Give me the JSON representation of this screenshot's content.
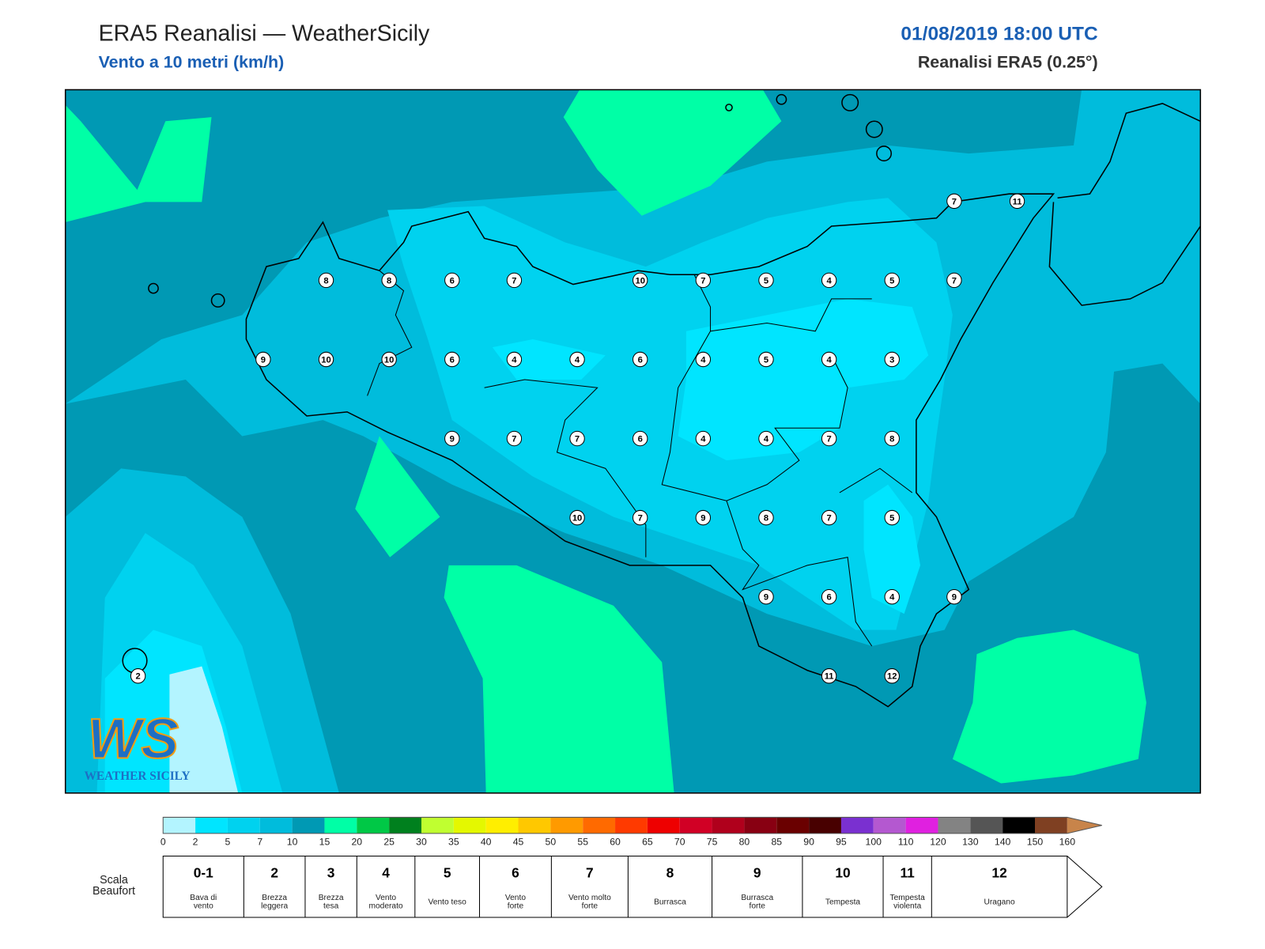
{
  "header": {
    "title": "ERA5 Reanalisi — WeatherSicily",
    "subtitle": "Vento a 10 metri (km/h)",
    "date": "01/08/2019 18:00 UTC",
    "source": "Reanalisi ERA5 (0.25°)"
  },
  "map": {
    "stations": [
      7,
      11,
      8,
      8,
      6,
      7,
      10,
      7,
      5,
      4,
      5,
      7,
      9,
      10,
      10,
      6,
      4,
      4,
      6,
      4,
      5,
      4,
      3,
      9,
      7,
      7,
      6,
      4,
      4,
      7,
      8,
      10,
      7,
      9,
      8,
      7,
      5,
      9,
      6,
      4,
      9,
      2,
      11,
      12
    ],
    "logo": {
      "mark": "WS",
      "text": "WEATHER SICILY"
    }
  },
  "colorbar": {
    "ticks": [
      0,
      2,
      5,
      7,
      10,
      15,
      20,
      25,
      30,
      35,
      40,
      45,
      50,
      55,
      60,
      65,
      70,
      75,
      80,
      85,
      90,
      95,
      100,
      110,
      120,
      130,
      140,
      150,
      160
    ],
    "colors": [
      "#b3f4ff",
      "#00e5ff",
      "#00d2ef",
      "#00bcdc",
      "#0099b4",
      "#00ffa6",
      "#00c846",
      "#00801e",
      "#c0ff30",
      "#e4f800",
      "#ffee00",
      "#ffc800",
      "#ff9a00",
      "#ff6a00",
      "#ff3a00",
      "#ee0000",
      "#d10025",
      "#b0001c",
      "#880012",
      "#6a0000",
      "#480000",
      "#7a30d0",
      "#b458d0",
      "#e020e0",
      "#838383",
      "#555555",
      "#000000",
      "#7f4022",
      "#c8844a"
    ]
  },
  "beaufort": {
    "label": [
      "Scala",
      "Beaufort"
    ],
    "levels": [
      {
        "number": "0-1",
        "desc": [
          "Bava di",
          "vento"
        ]
      },
      {
        "number": "2",
        "desc": [
          "Brezza",
          "leggera"
        ]
      },
      {
        "number": "3",
        "desc": [
          "Brezza",
          "tesa"
        ]
      },
      {
        "number": "4",
        "desc": [
          "Vento",
          "moderato"
        ]
      },
      {
        "number": "5",
        "desc": [
          "Vento teso"
        ]
      },
      {
        "number": "6",
        "desc": [
          "Vento",
          "forte"
        ]
      },
      {
        "number": "7",
        "desc": [
          "Vento molto",
          "forte"
        ]
      },
      {
        "number": "8",
        "desc": [
          "Burrasca"
        ]
      },
      {
        "number": "9",
        "desc": [
          "Burrasca",
          "forte"
        ]
      },
      {
        "number": "10",
        "desc": [
          "Tempesta"
        ]
      },
      {
        "number": "11",
        "desc": [
          "Tempesta",
          "violenta"
        ]
      },
      {
        "number": "12",
        "desc": [
          "Uragano"
        ]
      }
    ]
  }
}
